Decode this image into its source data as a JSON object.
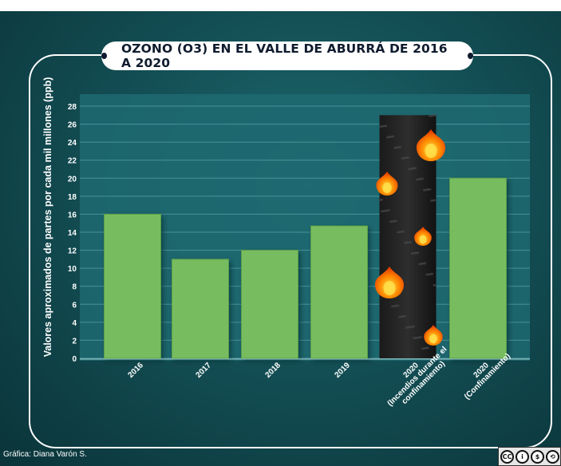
{
  "title": "OZONO (O3) EN EL VALLE DE ABURRÁ DE 2016 A 2020",
  "credit": "Gráfica: Diana Varón S.",
  "license_badge": {
    "icons": [
      "creative-commons-icon",
      "attribution-icon",
      "noncommercial-icon",
      "sharealike-icon"
    ],
    "text": "CC"
  },
  "colors": {
    "bar": "#77bd5f",
    "bar_stroke": "#5c9e48",
    "plot_bg": "#1e6a72",
    "grid": "#5fa3a8",
    "smoke": "#111111",
    "flame_outer": "#ff8a00",
    "flame_inner": "#ffe14a"
  },
  "chart_data": {
    "type": "bar",
    "categories": [
      "2016",
      "2017",
      "2018",
      "2019",
      "2020\n(Incendios durante el\nconfinamiento)",
      "2020\n(Confinamiento)"
    ],
    "values": [
      16,
      11,
      12,
      14.7,
      27,
      20
    ],
    "ylabel": "Valores aproximados de partes por cada mil millones (ppb)",
    "xlabel": "",
    "ylim": [
      0,
      28
    ],
    "yticks": [
      0,
      2,
      4,
      6,
      8,
      10,
      12,
      14,
      16,
      18,
      20,
      22,
      24,
      26,
      28
    ],
    "grid": true,
    "legend": "none",
    "special_bar_index": 4,
    "special_bar_style": "smoke-with-flames"
  }
}
